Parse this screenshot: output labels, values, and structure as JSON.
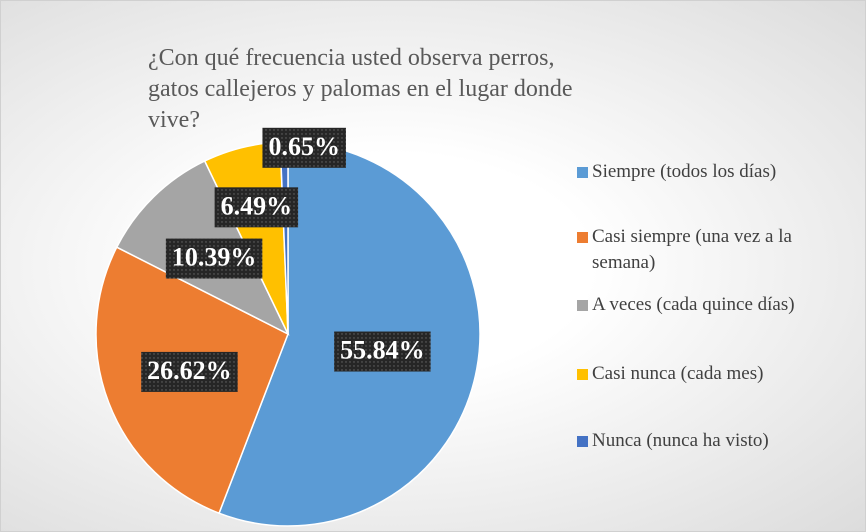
{
  "chart_data": {
    "type": "pie",
    "title": "¿Con qué frecuencia usted observa perros, gatos callejeros y palomas en el lugar donde vive?",
    "categories": [
      "Siempre (todos los días)",
      "Casi siempre (una vez a la semana)",
      "A veces (cada quince días)",
      "Casi nunca (cada mes)",
      "Nunca (nunca ha visto)"
    ],
    "values": [
      55.84,
      26.62,
      10.39,
      6.49,
      0.65
    ],
    "value_labels": [
      "55.84%",
      "26.62%",
      "10.39%",
      "6.49%",
      "0.65%"
    ],
    "colors": [
      "#5b9bd5",
      "#ed7d31",
      "#a5a5a5",
      "#ffc000",
      "#4472c4"
    ],
    "legend": "right"
  }
}
